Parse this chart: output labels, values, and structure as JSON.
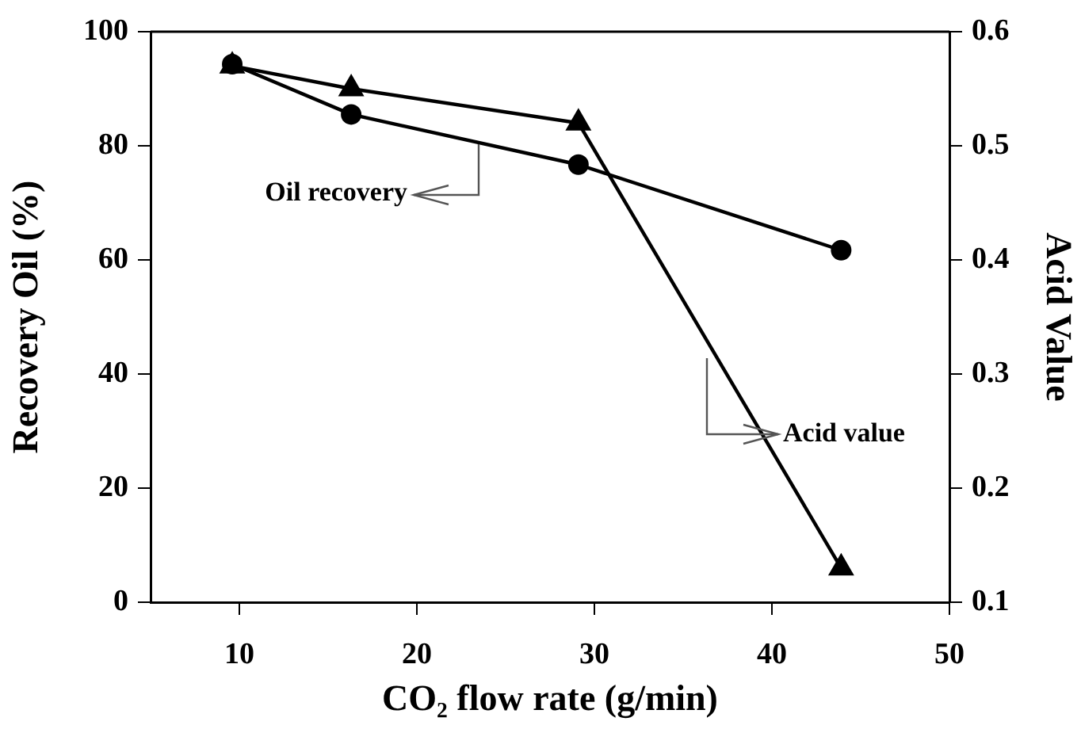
{
  "chart_data": {
    "type": "line",
    "xlabel": "CO₂ flow rate (g/min)",
    "ylabel": "Recovery Oil (%)",
    "y2label": "Acid Value",
    "xlim": [
      5,
      50
    ],
    "xticks": [
      10,
      20,
      30,
      40,
      50
    ],
    "ylim": [
      0,
      100
    ],
    "yticks": [
      0,
      20,
      40,
      60,
      80,
      100
    ],
    "y2lim": [
      0.1,
      0.6
    ],
    "y2ticks": [
      0.1,
      0.2,
      0.3,
      0.4,
      0.5,
      0.6
    ],
    "grid": false,
    "legend": false,
    "line_style": "solid",
    "series": [
      {
        "name": "Oil recovery",
        "color": "#000000",
        "marker": "circle",
        "x": [
          9.6,
          16.3,
          29.1,
          43.9
        ],
        "values": [
          94.3,
          85.5,
          76.7,
          61.7
        ]
      },
      {
        "name": "Acid value",
        "color": "#000000",
        "marker": "triangle",
        "axis": "y2",
        "x": [
          9.6,
          16.3,
          29.1,
          43.9
        ],
        "values": [
          0.57,
          0.55,
          0.52,
          0.13
        ]
      }
    ]
  }
}
